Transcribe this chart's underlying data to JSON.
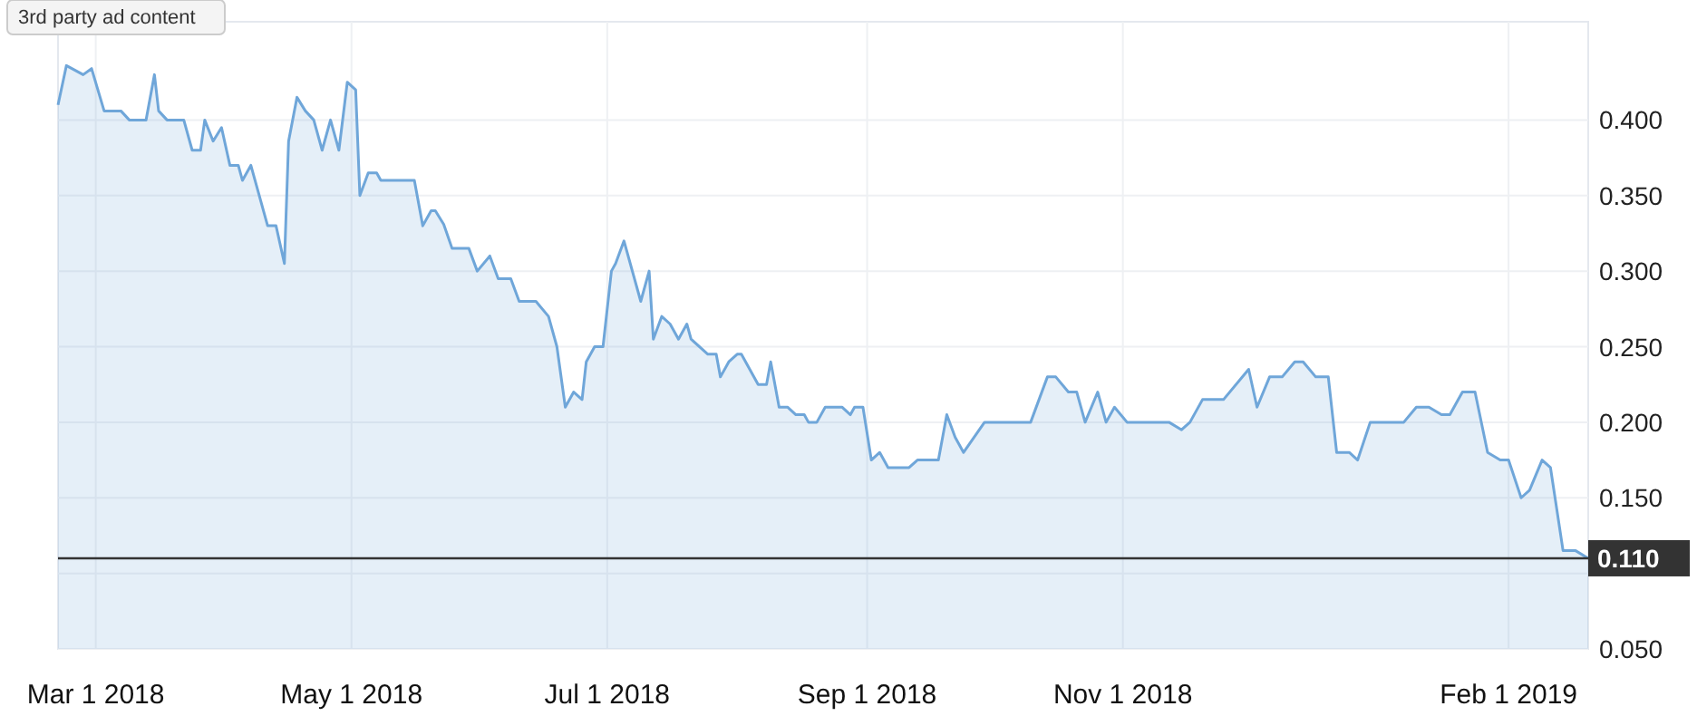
{
  "chart_data": {
    "type": "area",
    "x": [
      "2018-02-20",
      "2018-02-22",
      "2018-02-26",
      "2018-02-28",
      "2018-03-03",
      "2018-03-07",
      "2018-03-09",
      "2018-03-13",
      "2018-03-15",
      "2018-03-16",
      "2018-03-18",
      "2018-03-22",
      "2018-03-24",
      "2018-03-26",
      "2018-03-27",
      "2018-03-29",
      "2018-03-31",
      "2018-04-02",
      "2018-04-04",
      "2018-04-05",
      "2018-04-07",
      "2018-04-11",
      "2018-04-13",
      "2018-04-15",
      "2018-04-16",
      "2018-04-18",
      "2018-04-20",
      "2018-04-22",
      "2018-04-24",
      "2018-04-26",
      "2018-04-28",
      "2018-04-30",
      "2018-05-02",
      "2018-05-03",
      "2018-05-05",
      "2018-05-07",
      "2018-05-08",
      "2018-05-16",
      "2018-05-18",
      "2018-05-20",
      "2018-05-21",
      "2018-05-23",
      "2018-05-25",
      "2018-05-29",
      "2018-05-31",
      "2018-06-03",
      "2018-06-05",
      "2018-06-08",
      "2018-06-10",
      "2018-06-14",
      "2018-06-17",
      "2018-06-19",
      "2018-06-21",
      "2018-06-23",
      "2018-06-25",
      "2018-06-26",
      "2018-06-28",
      "2018-06-30",
      "2018-07-02",
      "2018-07-03",
      "2018-07-05",
      "2018-07-09",
      "2018-07-11",
      "2018-07-12",
      "2018-07-14",
      "2018-07-16",
      "2018-07-18",
      "2018-07-20",
      "2018-07-21",
      "2018-07-25",
      "2018-07-27",
      "2018-07-28",
      "2018-07-30",
      "2018-08-01",
      "2018-08-02",
      "2018-08-06",
      "2018-08-08",
      "2018-08-09",
      "2018-08-11",
      "2018-08-13",
      "2018-08-15",
      "2018-08-17",
      "2018-08-18",
      "2018-08-20",
      "2018-08-22",
      "2018-08-26",
      "2018-08-28",
      "2018-08-29",
      "2018-08-31",
      "2018-09-02",
      "2018-09-04",
      "2018-09-06",
      "2018-09-11",
      "2018-09-13",
      "2018-09-18",
      "2018-09-20",
      "2018-09-22",
      "2018-09-24",
      "2018-09-29",
      "2018-10-10",
      "2018-10-14",
      "2018-10-16",
      "2018-10-19",
      "2018-10-21",
      "2018-10-23",
      "2018-10-26",
      "2018-10-28",
      "2018-10-30",
      "2018-11-02",
      "2018-11-12",
      "2018-11-15",
      "2018-11-17",
      "2018-11-20",
      "2018-11-25",
      "2018-12-01",
      "2018-12-03",
      "2018-12-06",
      "2018-12-09",
      "2018-12-12",
      "2018-12-14",
      "2018-12-17",
      "2018-12-20",
      "2018-12-22",
      "2018-12-25",
      "2018-12-27",
      "2018-12-30",
      "2019-01-07",
      "2019-01-10",
      "2019-01-13",
      "2019-01-16",
      "2019-01-18",
      "2019-01-21",
      "2019-01-24",
      "2019-01-27",
      "2019-01-30",
      "2019-02-01",
      "2019-02-04",
      "2019-02-06",
      "2019-02-09",
      "2019-02-11",
      "2019-02-14",
      "2019-02-17",
      "2019-02-20"
    ],
    "series": [
      {
        "color": "#6fa6d9",
        "values": [
          0.41,
          0.436,
          0.43,
          0.434,
          0.406,
          0.406,
          0.4,
          0.4,
          0.43,
          0.406,
          0.4,
          0.4,
          0.38,
          0.38,
          0.4,
          0.386,
          0.395,
          0.37,
          0.37,
          0.36,
          0.37,
          0.33,
          0.33,
          0.305,
          0.386,
          0.415,
          0.406,
          0.4,
          0.38,
          0.4,
          0.38,
          0.425,
          0.42,
          0.35,
          0.365,
          0.365,
          0.36,
          0.36,
          0.33,
          0.34,
          0.34,
          0.331,
          0.315,
          0.315,
          0.3,
          0.31,
          0.295,
          0.295,
          0.28,
          0.28,
          0.27,
          0.25,
          0.21,
          0.22,
          0.215,
          0.24,
          0.25,
          0.25,
          0.3,
          0.305,
          0.32,
          0.28,
          0.3,
          0.255,
          0.27,
          0.265,
          0.255,
          0.265,
          0.255,
          0.245,
          0.245,
          0.23,
          0.24,
          0.245,
          0.245,
          0.225,
          0.225,
          0.24,
          0.21,
          0.21,
          0.205,
          0.205,
          0.2,
          0.2,
          0.21,
          0.21,
          0.205,
          0.21,
          0.21,
          0.175,
          0.18,
          0.17,
          0.17,
          0.175,
          0.175,
          0.205,
          0.19,
          0.18,
          0.2,
          0.2,
          0.23,
          0.23,
          0.22,
          0.22,
          0.2,
          0.22,
          0.2,
          0.21,
          0.2,
          0.2,
          0.195,
          0.2,
          0.215,
          0.215,
          0.235,
          0.21,
          0.23,
          0.23,
          0.24,
          0.24,
          0.23,
          0.23,
          0.18,
          0.18,
          0.175,
          0.2,
          0.2,
          0.21,
          0.21,
          0.205,
          0.205,
          0.22,
          0.22,
          0.18,
          0.175,
          0.175,
          0.15,
          0.155,
          0.175,
          0.17,
          0.115,
          0.115,
          0.11
        ]
      }
    ],
    "xlim": [
      "2018-02-20",
      "2019-02-20"
    ],
    "xticks": [
      {
        "value": "2018-03-01",
        "label": "Mar 1 2018"
      },
      {
        "value": "2018-05-01",
        "label": "May 1 2018"
      },
      {
        "value": "2018-07-01",
        "label": "Jul 1 2018"
      },
      {
        "value": "2018-09-01",
        "label": "Sep 1 2018"
      },
      {
        "value": "2018-11-01",
        "label": "Nov 1 2018"
      },
      {
        "value": "2019-02-01",
        "label": "Feb 1 2019"
      }
    ],
    "ylim": [
      0.05,
      0.465
    ],
    "yticks": [
      {
        "value": 0.05,
        "label": "0.050"
      },
      {
        "value": 0.1,
        "label": null
      },
      {
        "value": 0.15,
        "label": "0.150"
      },
      {
        "value": 0.2,
        "label": "0.200"
      },
      {
        "value": 0.25,
        "label": "0.250"
      },
      {
        "value": 0.3,
        "label": "0.300"
      },
      {
        "value": 0.35,
        "label": "0.350"
      },
      {
        "value": 0.4,
        "label": "0.400"
      }
    ],
    "grid": true,
    "ref_lines": [
      {
        "axis": "y",
        "value": 0.11,
        "label": "0.110",
        "color": "#333333"
      }
    ],
    "annotations": [
      "3rd party ad content"
    ]
  }
}
